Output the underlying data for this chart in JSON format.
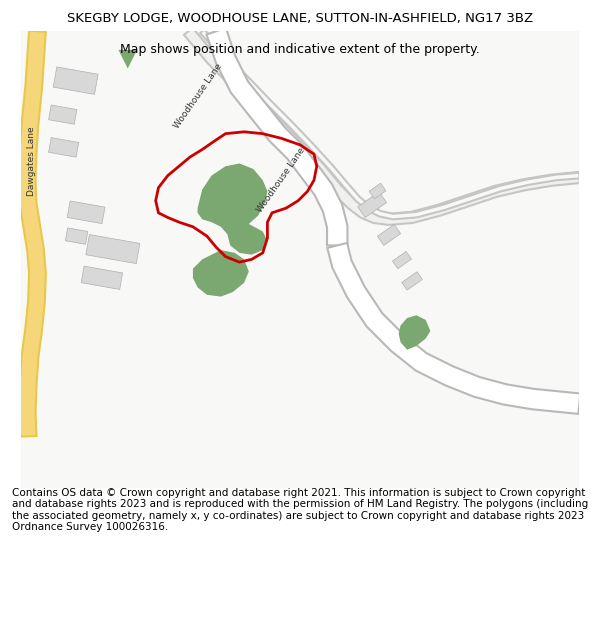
{
  "title_line1": "SKEGBY LODGE, WOODHOUSE LANE, SUTTON-IN-ASHFIELD, NG17 3BZ",
  "title_line2": "Map shows position and indicative extent of the property.",
  "footer": "Contains OS data © Crown copyright and database right 2021. This information is subject to Crown copyright and database rights 2023 and is reproduced with the permission of HM Land Registry. The polygons (including the associated geometry, namely x, y co-ordinates) are subject to Crown copyright and database rights 2023 Ordnance Survey 100026316.",
  "bg_color": "#f8f8f5",
  "map_bg": "#f8f8f5",
  "road_color_yellow": "#f5d77a",
  "road_outline_yellow": "#e8c84a",
  "road_color_white": "#ffffff",
  "road_outline_gray": "#c8c8c8",
  "building_color": "#d8d8d8",
  "green_fill": "#7aa870",
  "red_outline": "#cc0000",
  "title_fontsize": 9.5,
  "subtitle_fontsize": 9,
  "footer_fontsize": 7.5,
  "map_area": [
    0,
    0,
    600,
    490
  ],
  "figsize": [
    6.0,
    6.25
  ],
  "dpi": 100
}
